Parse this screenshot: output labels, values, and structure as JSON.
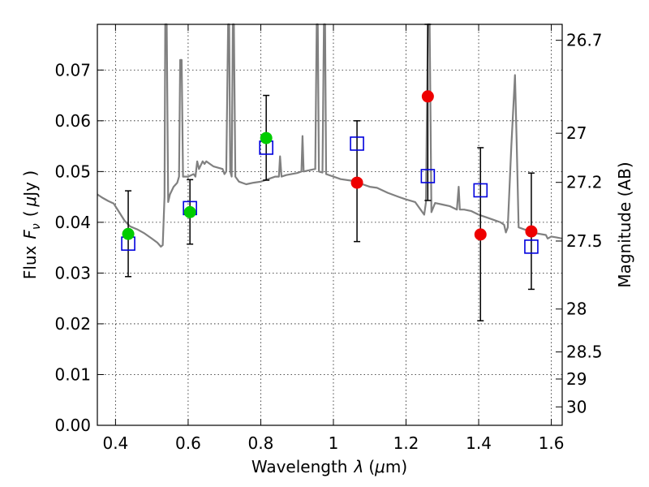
{
  "chart_data": {
    "type": "scatter",
    "xlabel": "Wavelength",
    "xlabel_symbol": "λ",
    "xlabel_unit_open": "(",
    "xlabel_unit_mu": "μ",
    "xlabel_unit_rest": "m)",
    "ylabel": "Flux",
    "ylabel_symbol_main": "F",
    "ylabel_symbol_sub": "ν",
    "ylabel_unit_open": "(",
    "ylabel_unit_mu": "μ",
    "ylabel_unit_rest": "Jy )",
    "y2label": "Magnitude (AB)",
    "xlim": [
      0.35,
      1.63
    ],
    "ylim": [
      0.0,
      0.079
    ],
    "grid": true,
    "x_ticks": [
      {
        "value": 0.4,
        "label": "0.4"
      },
      {
        "value": 0.6,
        "label": "0.6"
      },
      {
        "value": 0.8,
        "label": "0.8"
      },
      {
        "value": 1.0,
        "label": "1"
      },
      {
        "value": 1.2,
        "label": "1.2"
      },
      {
        "value": 1.4,
        "label": "1.4"
      },
      {
        "value": 1.6,
        "label": "1.6"
      }
    ],
    "y_ticks": [
      {
        "value": 0.0,
        "label": "0.00"
      },
      {
        "value": 0.01,
        "label": "0.01"
      },
      {
        "value": 0.02,
        "label": "0.02"
      },
      {
        "value": 0.03,
        "label": "0.03"
      },
      {
        "value": 0.04,
        "label": "0.04"
      },
      {
        "value": 0.05,
        "label": "0.05"
      },
      {
        "value": 0.06,
        "label": "0.06"
      },
      {
        "value": 0.07,
        "label": "0.07"
      }
    ],
    "y2_ticks": [
      {
        "value": 26.7,
        "label": "26.7"
      },
      {
        "value": 27,
        "label": "27"
      },
      {
        "value": 27.2,
        "label": "27.2"
      },
      {
        "value": 27.5,
        "label": "27.5"
      },
      {
        "value": 28,
        "label": "28"
      },
      {
        "value": 28.5,
        "label": "28.5"
      },
      {
        "value": 29,
        "label": "29"
      },
      {
        "value": 30,
        "label": "30"
      }
    ],
    "model_spectrum": {
      "color": "#808080",
      "points": [
        [
          0.35,
          0.0455
        ],
        [
          0.365,
          0.0448
        ],
        [
          0.38,
          0.0442
        ],
        [
          0.395,
          0.0437
        ],
        [
          0.41,
          0.042
        ],
        [
          0.425,
          0.0403
        ],
        [
          0.44,
          0.0392
        ],
        [
          0.46,
          0.0386
        ],
        [
          0.48,
          0.0378
        ],
        [
          0.5,
          0.0368
        ],
        [
          0.515,
          0.036
        ],
        [
          0.525,
          0.0352
        ],
        [
          0.53,
          0.0355
        ],
        [
          0.535,
          0.045
        ],
        [
          0.537,
          0.079
        ],
        [
          0.541,
          0.079
        ],
        [
          0.545,
          0.044
        ],
        [
          0.55,
          0.0455
        ],
        [
          0.56,
          0.047
        ],
        [
          0.57,
          0.0478
        ],
        [
          0.575,
          0.049
        ],
        [
          0.578,
          0.072
        ],
        [
          0.582,
          0.072
        ],
        [
          0.586,
          0.049
        ],
        [
          0.6,
          0.049
        ],
        [
          0.615,
          0.0495
        ],
        [
          0.62,
          0.049
        ],
        [
          0.625,
          0.052
        ],
        [
          0.63,
          0.0505
        ],
        [
          0.64,
          0.052
        ],
        [
          0.645,
          0.0515
        ],
        [
          0.65,
          0.052
        ],
        [
          0.66,
          0.0515
        ],
        [
          0.67,
          0.051
        ],
        [
          0.68,
          0.0508
        ],
        [
          0.695,
          0.0505
        ],
        [
          0.7,
          0.0495
        ],
        [
          0.705,
          0.05
        ],
        [
          0.71,
          0.079
        ],
        [
          0.713,
          0.079
        ],
        [
          0.716,
          0.05
        ],
        [
          0.72,
          0.049
        ],
        [
          0.723,
          0.079
        ],
        [
          0.726,
          0.079
        ],
        [
          0.73,
          0.049
        ],
        [
          0.74,
          0.048
        ],
        [
          0.76,
          0.0475
        ],
        [
          0.78,
          0.0478
        ],
        [
          0.8,
          0.048
        ],
        [
          0.82,
          0.0485
        ],
        [
          0.84,
          0.049
        ],
        [
          0.85,
          0.049
        ],
        [
          0.853,
          0.053
        ],
        [
          0.857,
          0.049
        ],
        [
          0.87,
          0.0493
        ],
        [
          0.9,
          0.0497
        ],
        [
          0.912,
          0.05
        ],
        [
          0.915,
          0.057
        ],
        [
          0.918,
          0.05
        ],
        [
          0.93,
          0.0502
        ],
        [
          0.95,
          0.0505
        ],
        [
          0.954,
          0.079
        ],
        [
          0.957,
          0.079
        ],
        [
          0.96,
          0.05
        ],
        [
          0.97,
          0.0498
        ],
        [
          0.974,
          0.079
        ],
        [
          0.977,
          0.079
        ],
        [
          0.98,
          0.0495
        ],
        [
          1.0,
          0.049
        ],
        [
          1.02,
          0.0485
        ],
        [
          1.05,
          0.0482
        ],
        [
          1.08,
          0.0475
        ],
        [
          1.1,
          0.047
        ],
        [
          1.12,
          0.0468
        ],
        [
          1.15,
          0.0458
        ],
        [
          1.18,
          0.045
        ],
        [
          1.2,
          0.0445
        ],
        [
          1.225,
          0.044
        ],
        [
          1.24,
          0.0425
        ],
        [
          1.25,
          0.0415
        ],
        [
          1.255,
          0.044
        ],
        [
          1.26,
          0.079
        ],
        [
          1.265,
          0.079
        ],
        [
          1.27,
          0.042
        ],
        [
          1.28,
          0.0438
        ],
        [
          1.3,
          0.0435
        ],
        [
          1.32,
          0.0432
        ],
        [
          1.34,
          0.0425
        ],
        [
          1.345,
          0.047
        ],
        [
          1.348,
          0.0425
        ],
        [
          1.36,
          0.0425
        ],
        [
          1.38,
          0.0422
        ],
        [
          1.4,
          0.0415
        ],
        [
          1.42,
          0.041
        ],
        [
          1.44,
          0.0405
        ],
        [
          1.46,
          0.04
        ],
        [
          1.47,
          0.0395
        ],
        [
          1.475,
          0.038
        ],
        [
          1.48,
          0.039
        ],
        [
          1.49,
          0.055
        ],
        [
          1.5,
          0.069
        ],
        [
          1.505,
          0.055
        ],
        [
          1.51,
          0.039
        ],
        [
          1.53,
          0.0385
        ],
        [
          1.56,
          0.0378
        ],
        [
          1.585,
          0.0375
        ],
        [
          1.59,
          0.0368
        ],
        [
          1.6,
          0.0372
        ],
        [
          1.615,
          0.037
        ],
        [
          1.63,
          0.0368
        ]
      ]
    },
    "series": [
      {
        "marker": "square",
        "color": "#0000dd",
        "points": [
          {
            "x": 0.435,
            "y": 0.0358
          },
          {
            "x": 0.605,
            "y": 0.0428
          },
          {
            "x": 0.815,
            "y": 0.0547
          },
          {
            "x": 1.065,
            "y": 0.0555
          },
          {
            "x": 1.26,
            "y": 0.0491
          },
          {
            "x": 1.405,
            "y": 0.0463
          },
          {
            "x": 1.545,
            "y": 0.0352
          }
        ]
      },
      {
        "marker": "circle",
        "color": "#00cc00",
        "points": [
          {
            "x": 0.435,
            "y": 0.0377,
            "yerr_low": 0.0293,
            "yerr_high": 0.0462
          },
          {
            "x": 0.605,
            "y": 0.042,
            "yerr_low": 0.0357,
            "yerr_high": 0.0484
          },
          {
            "x": 0.815,
            "y": 0.0566,
            "yerr_low": 0.0483,
            "yerr_high": 0.065
          }
        ]
      },
      {
        "marker": "circle",
        "color": "#ee0000",
        "points": [
          {
            "x": 1.065,
            "y": 0.0478,
            "yerr_low": 0.0362,
            "yerr_high": 0.06
          },
          {
            "x": 1.26,
            "y": 0.0648,
            "yerr_low": 0.0443,
            "yerr_high": 0.079
          },
          {
            "x": 1.405,
            "y": 0.0376,
            "yerr_low": 0.0206,
            "yerr_high": 0.0547
          },
          {
            "x": 1.545,
            "y": 0.0382,
            "yerr_low": 0.0268,
            "yerr_high": 0.0497
          }
        ]
      }
    ]
  }
}
